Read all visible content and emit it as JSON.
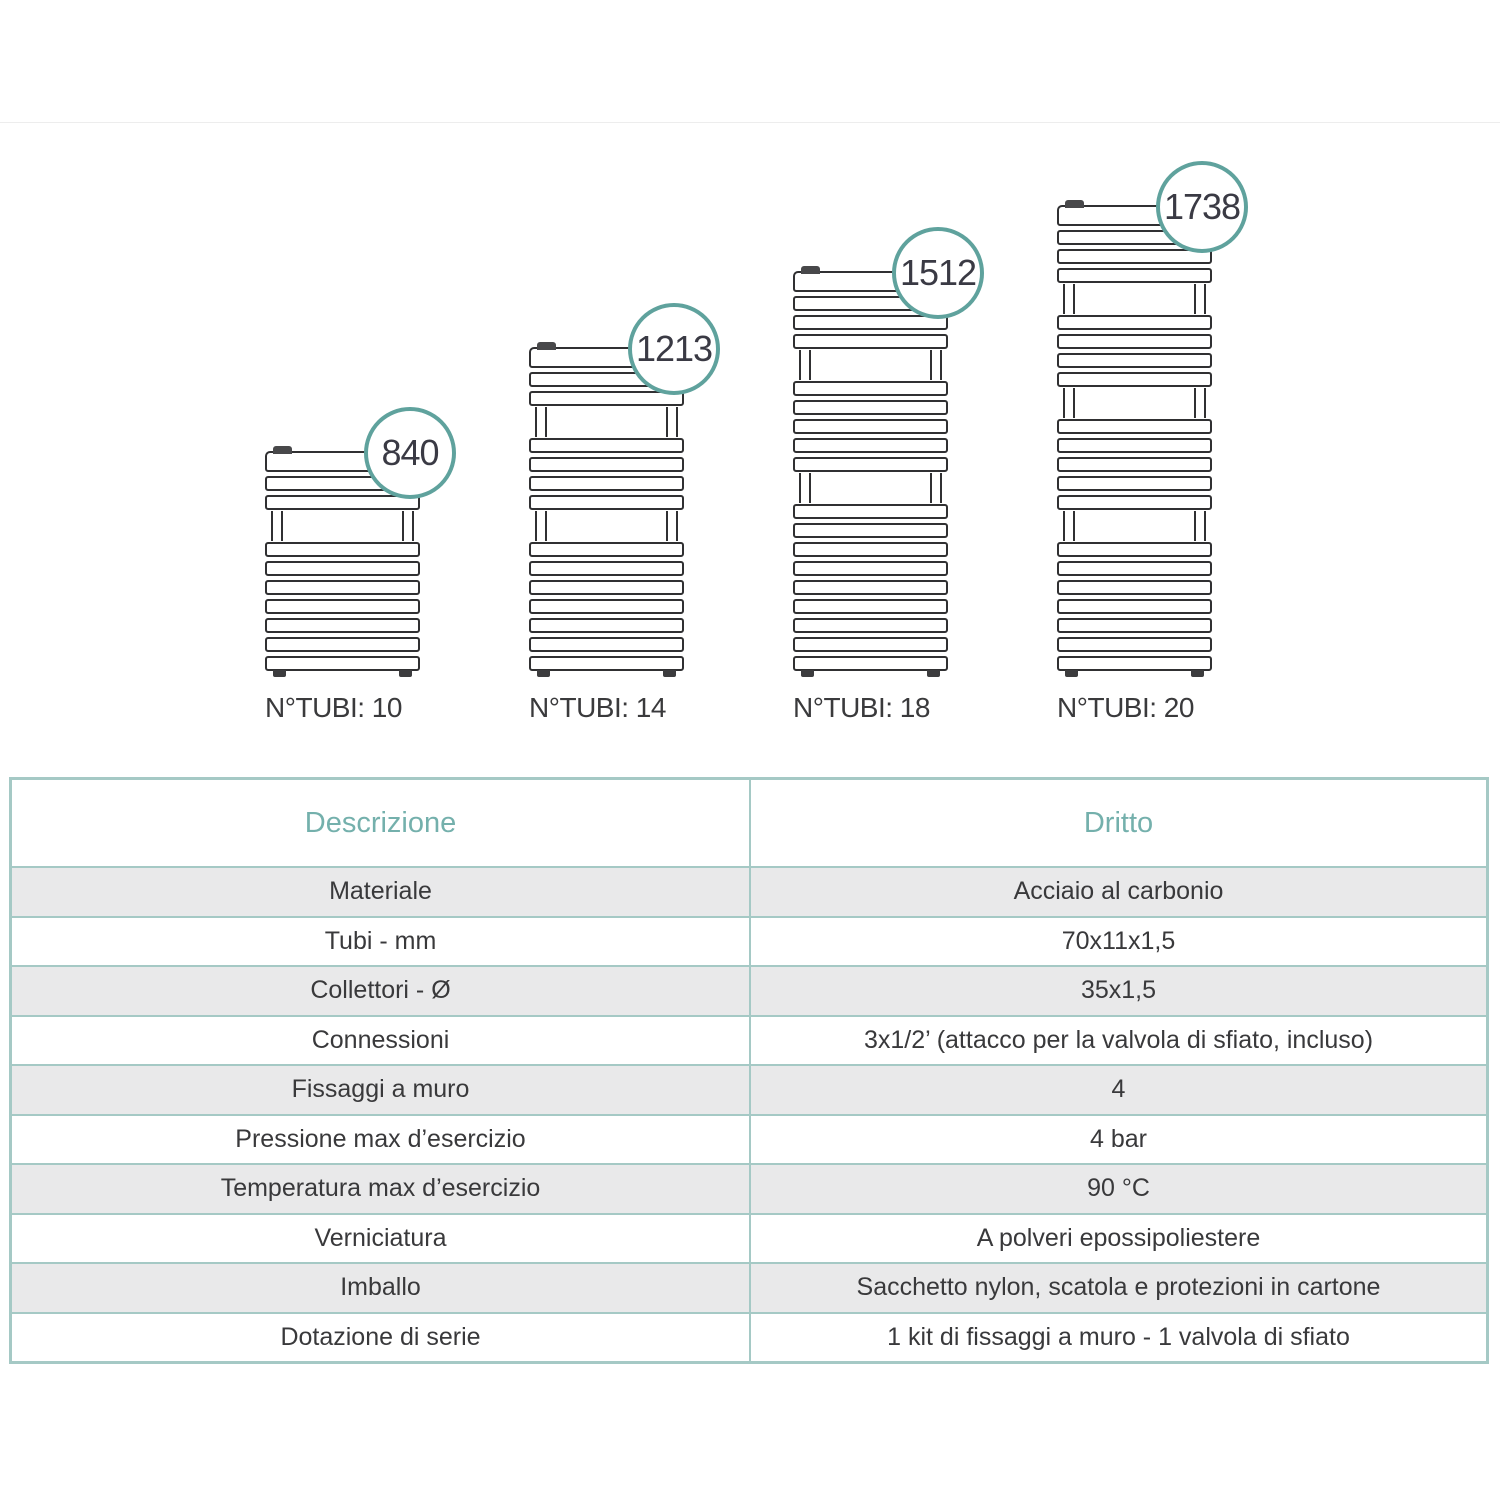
{
  "diagram": {
    "radiators": [
      {
        "height_mm": "840",
        "tubes": 10,
        "tubes_label": "N°TUBI: 10",
        "groups": [
          3,
          7
        ]
      },
      {
        "height_mm": "1213",
        "tubes": 14,
        "tubes_label": "N°TUBI: 14",
        "groups": [
          3,
          4,
          7
        ]
      },
      {
        "height_mm": "1512",
        "tubes": 18,
        "tubes_label": "N°TUBI: 18",
        "groups": [
          4,
          5,
          9
        ]
      },
      {
        "height_mm": "1738",
        "tubes": 20,
        "tubes_label": "N°TUBI: 20",
        "groups": [
          4,
          4,
          5,
          7
        ]
      }
    ]
  },
  "table": {
    "col1_header": "Descrizione",
    "col2_header": "Dritto",
    "rows": [
      {
        "label": "Materiale",
        "value": "Acciaio al carbonio"
      },
      {
        "label": "Tubi - mm",
        "value": "70x11x1,5"
      },
      {
        "label": "Collettori - Ø",
        "value": "35x1,5"
      },
      {
        "label": "Connessioni",
        "value": "3x1/2’ (attacco per la valvola di sfiato, incluso)"
      },
      {
        "label": "Fissaggi a muro",
        "value": "4"
      },
      {
        "label": "Pressione max d’esercizio",
        "value": "4 bar"
      },
      {
        "label": "Temperatura max d’esercizio",
        "value": "90 °C"
      },
      {
        "label": "Verniciatura",
        "value": "A polveri epossipoliestere"
      },
      {
        "label": "Imballo",
        "value": "Sacchetto nylon, scatola e protezioni in cartone"
      },
      {
        "label": "Dotazione di serie",
        "value": "1 kit di fissaggi a muro - 1 valvola di sfiato"
      }
    ]
  },
  "colors": {
    "accent_teal_circle": "#5fa29d",
    "table_border_teal": "#a5c9c5",
    "table_header_text": "#74b0ac",
    "row_gray": "#e9e9ea",
    "dark_text": "#3a3a3c",
    "tube_stroke": "#303032"
  }
}
